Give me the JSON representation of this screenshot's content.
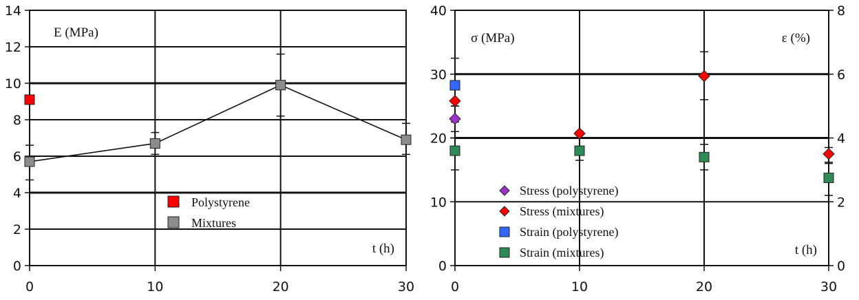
{
  "chart_data": [
    {
      "type": "line",
      "x_ticks": [
        0,
        10,
        20,
        30
      ],
      "y_ticks": [
        0,
        2,
        4,
        6,
        8,
        10,
        12,
        14
      ],
      "xlim": [
        0,
        30
      ],
      "ylim": [
        0,
        14
      ],
      "grid": "horizontal and vertical",
      "ylabel": "E (MPa)",
      "xlabel": "t (h)",
      "legend_position": "center-bottom",
      "series": [
        {
          "name": "Polystyrene",
          "color": "#ff0000",
          "marker": "square",
          "line": false,
          "points": [
            {
              "x": 0,
              "y": 9.1
            }
          ]
        },
        {
          "name": "Mixtures",
          "color": "#8c8c8c",
          "marker": "square",
          "line": true,
          "points": [
            {
              "x": 0,
              "y": 5.7,
              "err_low": 4.7,
              "err_high": 6.6
            },
            {
              "x": 10,
              "y": 6.7,
              "err_low": 6.1,
              "err_high": 7.3
            },
            {
              "x": 20,
              "y": 9.9,
              "err_low": 8.2,
              "err_high": 11.6
            },
            {
              "x": 30,
              "y": 6.9,
              "err_low": 6.1,
              "err_high": 7.8
            }
          ]
        }
      ]
    },
    {
      "type": "scatter",
      "x_ticks": [
        0,
        10,
        20,
        30
      ],
      "y_ticks": [
        0,
        10,
        20,
        30,
        40
      ],
      "y2_ticks": [
        0,
        2,
        4,
        6,
        8
      ],
      "xlim": [
        0,
        30
      ],
      "ylim": [
        0,
        40
      ],
      "y2lim": [
        0,
        8
      ],
      "grid": "horizontal and vertical",
      "ylabel": "σ (MPa)",
      "y2label": "ε (%)",
      "xlabel": "t (h)",
      "legend_position": "bottom-left",
      "series": [
        {
          "name": "Stress (polystyrene)",
          "axis": "left",
          "color": "#9933cc",
          "marker": "diamond",
          "points": [
            {
              "x": 0,
              "y": 23,
              "err_low": 20,
              "err_high": 25
            }
          ]
        },
        {
          "name": "Stress (mixtures)",
          "axis": "left",
          "color": "#ff0000",
          "marker": "diamond",
          "points": [
            {
              "x": 0,
              "y": 25.8,
              "err_low": 22.5,
              "err_high": 28.5
            },
            {
              "x": 10,
              "y": 20.7
            },
            {
              "x": 20,
              "y": 29.7,
              "err_low": 26,
              "err_high": 33.5
            },
            {
              "x": 30,
              "y": 17.5,
              "err_low": 16.2,
              "err_high": 18.5
            }
          ]
        },
        {
          "name": "Strain (polystyrene)",
          "axis": "right",
          "color": "#3366ff",
          "marker": "square",
          "points": [
            {
              "x": 0,
              "y": 5.65,
              "err_low": 5,
              "err_high": 6.5
            }
          ]
        },
        {
          "name": "Strain (mixtures)",
          "axis": "right",
          "color": "#2e8b57",
          "marker": "square",
          "points": [
            {
              "x": 0,
              "y": 3.6,
              "err_low": 3,
              "err_high": 4.2
            },
            {
              "x": 10,
              "y": 3.6,
              "err_low": 3.3,
              "err_high": 4.2
            },
            {
              "x": 20,
              "y": 3.4,
              "err_low": 3,
              "err_high": 3.8
            },
            {
              "x": 30,
              "y": 2.75,
              "err_low": 2.2,
              "err_high": 3.2
            }
          ]
        }
      ]
    }
  ]
}
